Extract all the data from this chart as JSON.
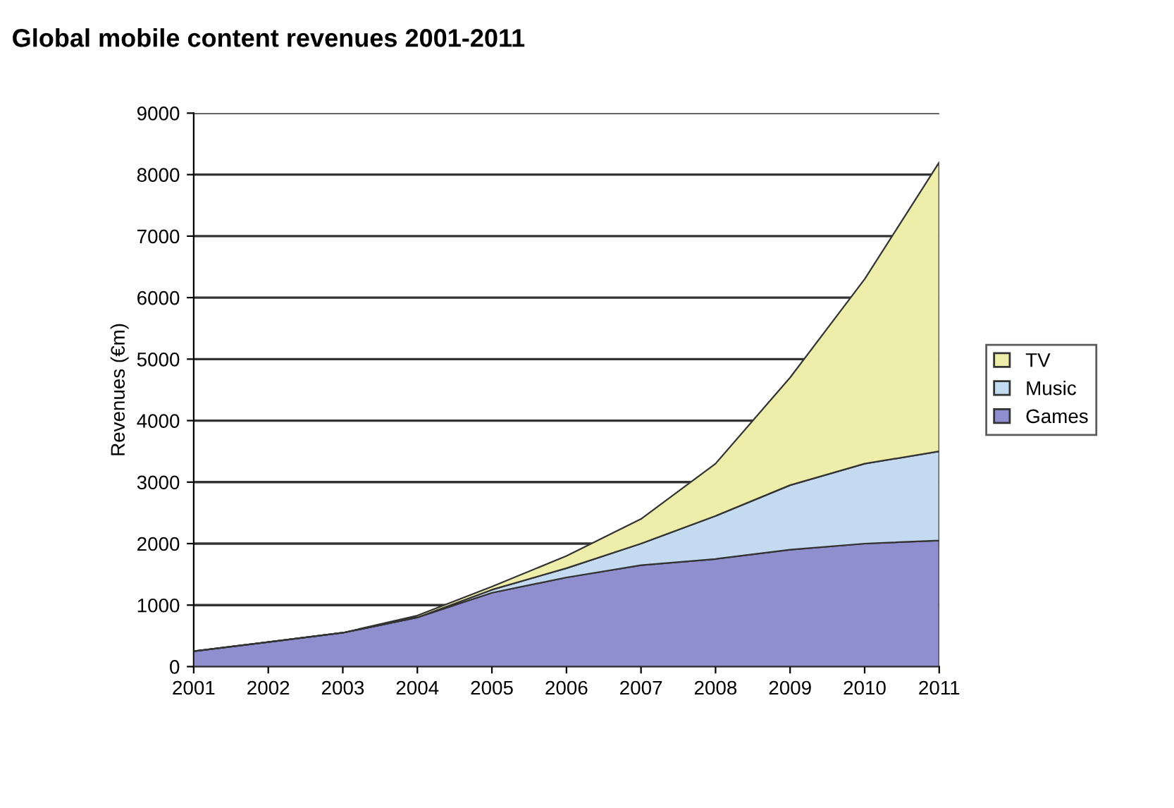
{
  "chart_data": {
    "type": "area",
    "stacked": true,
    "title": "Global mobile content revenues 2001-2011",
    "ylabel": "Revenues (€m)",
    "x": [
      2001,
      2002,
      2003,
      2004,
      2005,
      2006,
      2007,
      2008,
      2009,
      2010,
      2011
    ],
    "series": [
      {
        "name": "Games",
        "color": "#8f8fcf",
        "values": [
          250,
          400,
          550,
          800,
          1200,
          1450,
          1650,
          1750,
          1900,
          2000,
          2050
        ]
      },
      {
        "name": "Music",
        "color": "#c4daf0",
        "values": [
          0,
          0,
          0,
          0,
          50,
          150,
          350,
          700,
          1050,
          1300,
          1450
        ]
      },
      {
        "name": "TV",
        "color": "#eeeeaa",
        "values": [
          0,
          0,
          0,
          30,
          50,
          200,
          400,
          850,
          1750,
          3000,
          4700
        ]
      }
    ],
    "xlim": [
      2001,
      2011
    ],
    "xticks": [
      2001,
      2002,
      2003,
      2004,
      2005,
      2006,
      2007,
      2008,
      2009,
      2010,
      2011
    ],
    "ylim": [
      0,
      9000
    ],
    "yticks": [
      0,
      1000,
      2000,
      3000,
      4000,
      5000,
      6000,
      7000,
      8000,
      9000
    ],
    "grid": "y",
    "legend": "right"
  }
}
